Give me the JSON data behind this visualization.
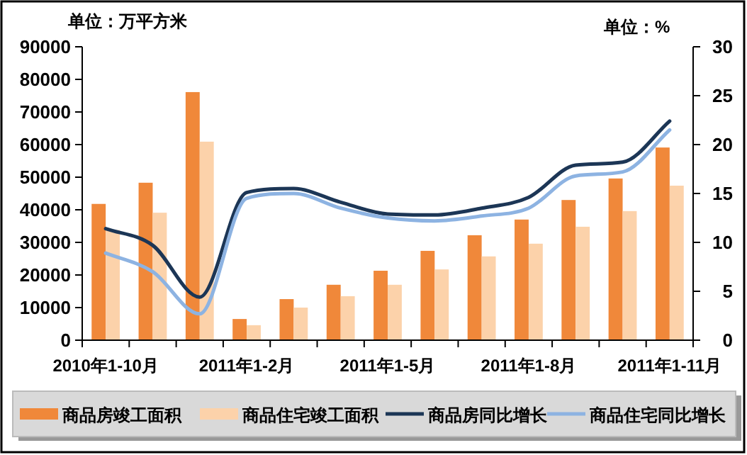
{
  "chart_data": {
    "type": "bar",
    "ylabel": "单位：万平方米",
    "y2label": "单位：%",
    "categories": [
      "2010年1-10月",
      null,
      null,
      "2011年1-2月",
      null,
      null,
      "2011年1-5月",
      null,
      null,
      "2011年1-8月",
      null,
      null,
      "2011年1-11月"
    ],
    "series": [
      {
        "name": "商品房竣工面积",
        "color": "#f0883a",
        "values": [
          41800,
          48300,
          76100,
          6500,
          12600,
          17000,
          21300,
          27400,
          32200,
          37000,
          43000,
          49600,
          59100
        ]
      },
      {
        "name": "商品住宅竣工面积",
        "color": "#fcd2aa",
        "values": [
          33800,
          39100,
          60900,
          4600,
          10000,
          13500,
          17000,
          21700,
          25700,
          29600,
          34800,
          39600,
          47400
        ]
      },
      {
        "name": "商品房同比增长",
        "type": "line",
        "axis": "y2",
        "color": "#1c3656",
        "values": [
          11.4,
          9.7,
          4.4,
          15.1,
          15.5,
          14.1,
          12.9,
          12.8,
          13.5,
          14.6,
          17.9,
          18.2,
          22.4
        ]
      },
      {
        "name": "商品住宅同比增长",
        "type": "line",
        "axis": "y2",
        "color": "#8db3e2",
        "values": [
          8.9,
          7.0,
          2.7,
          14.5,
          15.0,
          13.5,
          12.5,
          12.2,
          12.7,
          13.5,
          16.8,
          17.2,
          21.5
        ]
      }
    ],
    "ylim": [
      0,
      90000
    ],
    "yticks": [
      0,
      10000,
      20000,
      30000,
      40000,
      50000,
      60000,
      70000,
      80000,
      90000
    ],
    "y2lim": [
      0,
      30
    ],
    "y2ticks": [
      0,
      5,
      10,
      15,
      20,
      25,
      30
    ],
    "grid": false,
    "legend": "bottom",
    "marker": "none",
    "line_style": "solid"
  }
}
